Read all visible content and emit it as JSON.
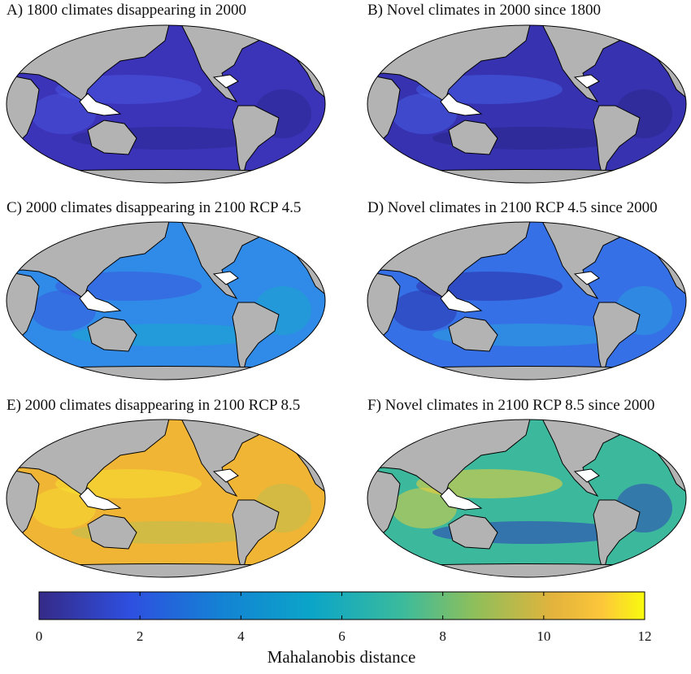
{
  "panels": [
    {
      "title": "A) 1800 climates disappearing in 2000"
    },
    {
      "title": "B) Novel climates in 2000 since 1800"
    },
    {
      "title": "C) 2000 climates disappearing in 2100 RCP 4.5"
    },
    {
      "title": "D) Novel climates in 2100 RCP 4.5 since 2000"
    },
    {
      "title": "E) 2000 climates disappearing in 2100 RCP 8.5"
    },
    {
      "title": "F) Novel climates in 2100 RCP 8.5 since 2000"
    }
  ],
  "colorbar": {
    "lim": [
      0,
      12
    ],
    "ticks": [
      0,
      2,
      4,
      6,
      8,
      10,
      12
    ],
    "label": "Mahalanobis distance"
  }
}
